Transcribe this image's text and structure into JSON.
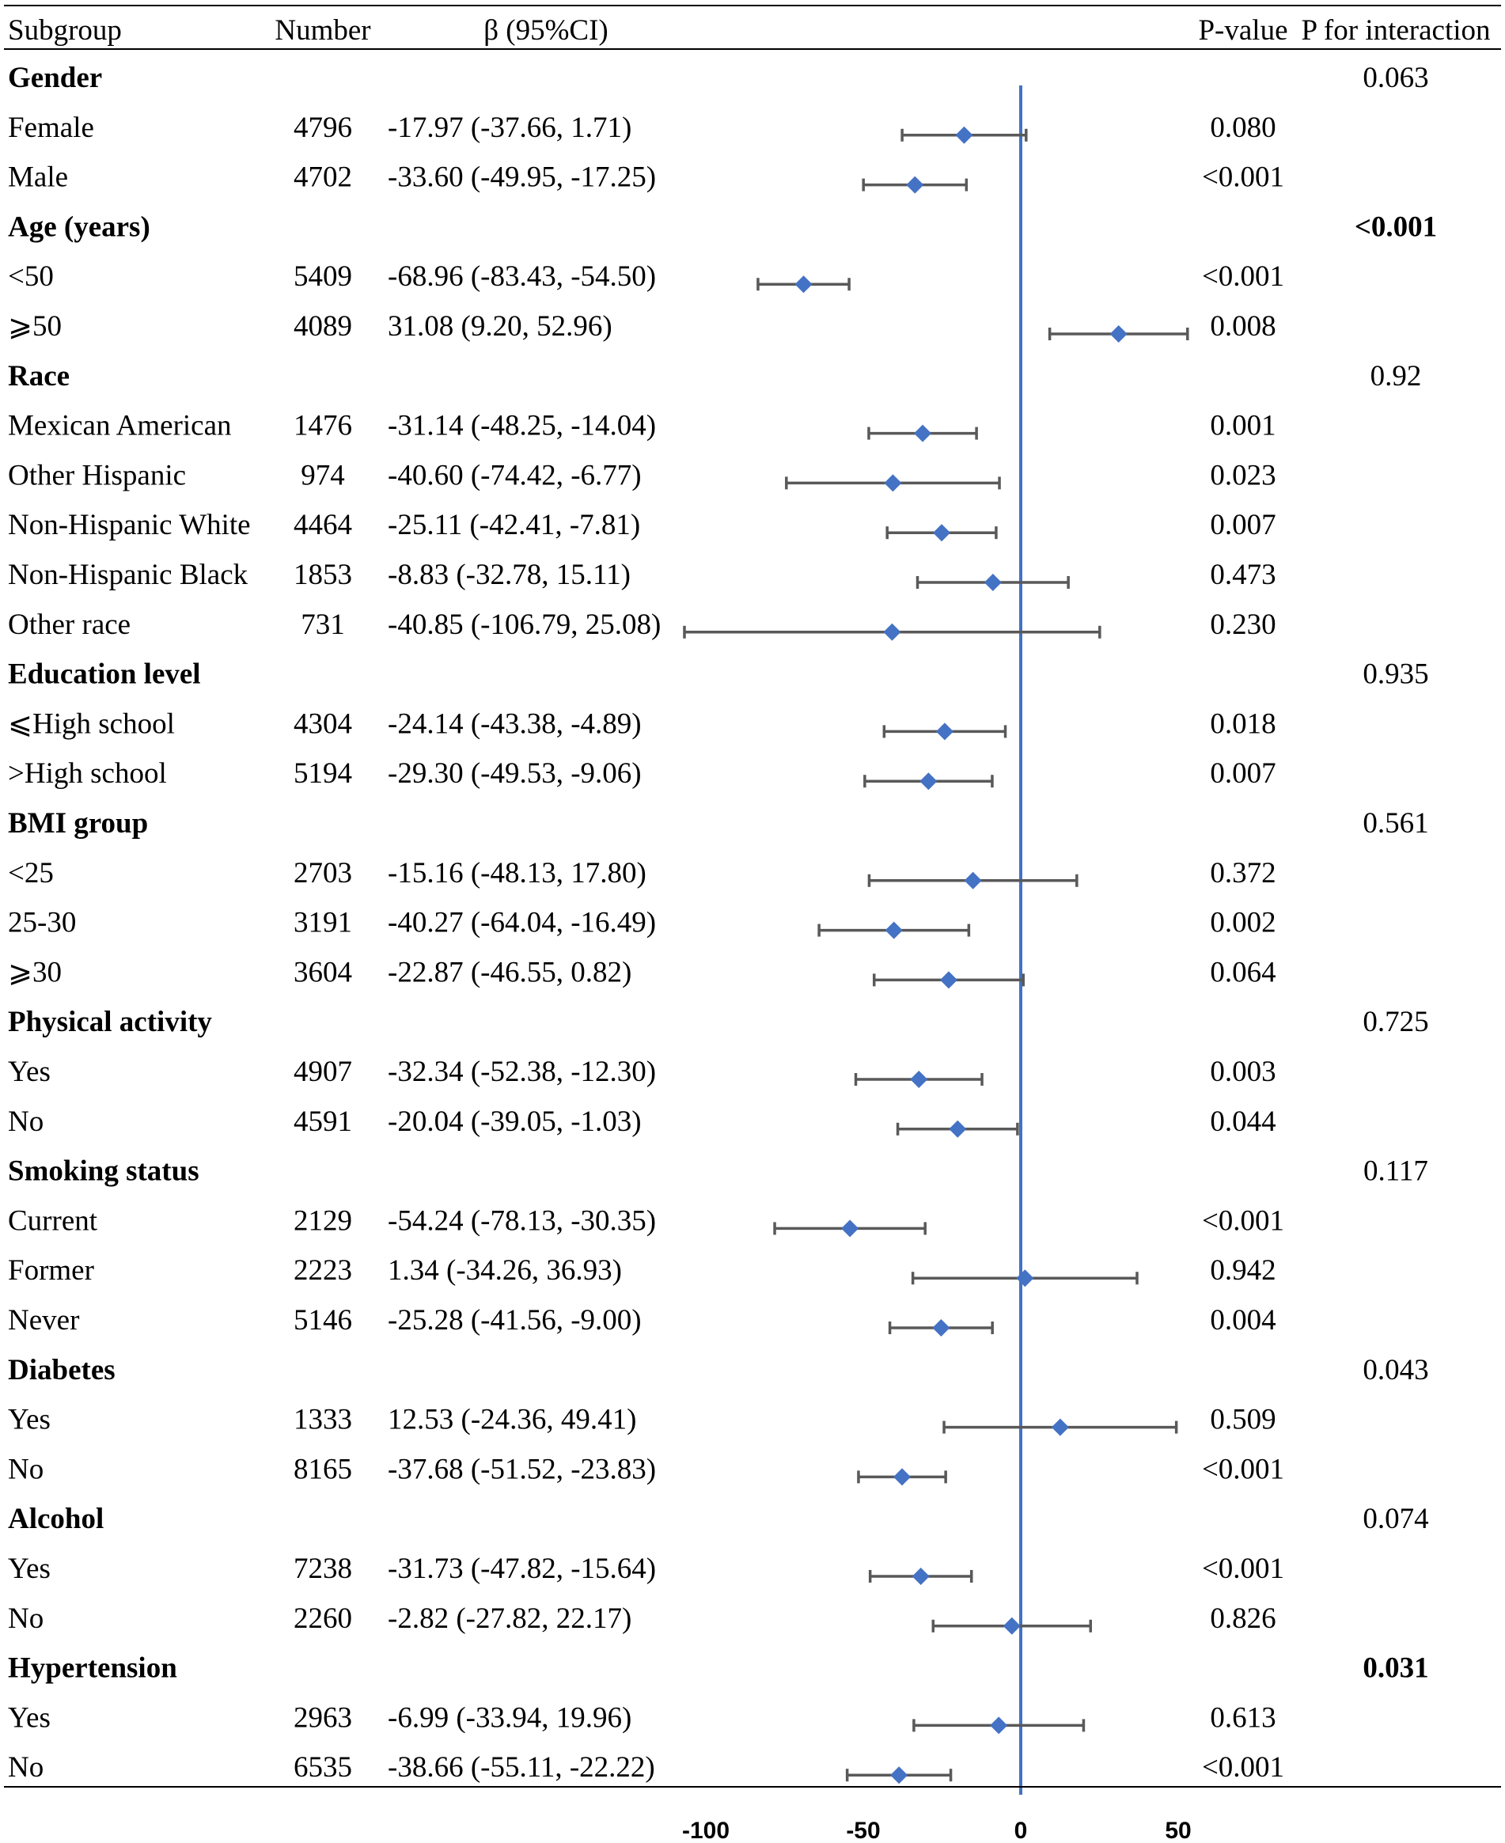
{
  "chart_data": {
    "type": "forest",
    "columns": {
      "subgroup": "Subgroup",
      "number": "Number",
      "beta": "β (95%CI)",
      "p_value": "P-value",
      "p_interaction": "P for interaction"
    },
    "x_axis": {
      "range": [
        -100,
        50
      ],
      "ticks": [
        -100,
        -50,
        0,
        50
      ],
      "reference_line": 0
    },
    "rows": [
      {
        "type": "group",
        "label": "Gender",
        "p_interaction": "0.063",
        "p_bold": false
      },
      {
        "type": "item",
        "label": "Female",
        "n": "4796",
        "ci_text": "-17.97 (-37.66, 1.71)",
        "beta": -17.97,
        "lower": -37.66,
        "upper": 1.71,
        "p": "0.080"
      },
      {
        "type": "item",
        "label": "Male",
        "n": "4702",
        "ci_text": "-33.60 (-49.95, -17.25)",
        "beta": -33.6,
        "lower": -49.95,
        "upper": -17.25,
        "p": "<0.001"
      },
      {
        "type": "group",
        "label": "Age (years)",
        "p_interaction": "<0.001",
        "p_bold": true
      },
      {
        "type": "item",
        "label": " <50",
        "n": "5409",
        "ci_text": "-68.96 (-83.43, -54.50)",
        "beta": -68.96,
        "lower": -83.43,
        "upper": -54.5,
        "p": "<0.001"
      },
      {
        "type": "item",
        "label": " ⩾50",
        "n": "4089",
        "ci_text": "31.08 (9.20, 52.96)",
        "beta": 31.08,
        "lower": 9.2,
        "upper": 52.96,
        "p": "0.008"
      },
      {
        "type": "group",
        "label": "Race",
        "p_interaction": "0.92",
        "p_bold": false
      },
      {
        "type": "item",
        "label": "Mexican American",
        "n": "1476",
        "ci_text": "-31.14 (-48.25, -14.04)",
        "beta": -31.14,
        "lower": -48.25,
        "upper": -14.04,
        "p": "0.001"
      },
      {
        "type": "item",
        "label": "Other Hispanic",
        "n": "974",
        "ci_text": "-40.60 (-74.42, -6.77)",
        "beta": -40.6,
        "lower": -74.42,
        "upper": -6.77,
        "p": "0.023"
      },
      {
        "type": "item",
        "label": "Non-Hispanic White",
        "n": "4464",
        "ci_text": "-25.11 (-42.41, -7.81)",
        "beta": -25.11,
        "lower": -42.41,
        "upper": -7.81,
        "p": "0.007"
      },
      {
        "type": "item",
        "label": "Non-Hispanic Black",
        "n": "1853",
        "ci_text": "-8.83 (-32.78, 15.11)",
        "beta": -8.83,
        "lower": -32.78,
        "upper": 15.11,
        "p": "0.473"
      },
      {
        "type": "item",
        "label": "Other race",
        "n": "731",
        "ci_text": "-40.85 (-106.79, 25.08)",
        "beta": -40.85,
        "lower": -106.79,
        "upper": 25.08,
        "p": "0.230"
      },
      {
        "type": "group",
        "label": "Education level",
        "p_interaction": "0.935",
        "p_bold": false
      },
      {
        "type": "item",
        "label": "⩽High school",
        "n": "4304",
        "ci_text": "-24.14 (-43.38, -4.89)",
        "beta": -24.14,
        "lower": -43.38,
        "upper": -4.89,
        "p": "0.018"
      },
      {
        "type": "item",
        "label": ">High school",
        "n": "5194",
        "ci_text": "-29.30 (-49.53, -9.06)",
        "beta": -29.3,
        "lower": -49.53,
        "upper": -9.06,
        "p": "0.007"
      },
      {
        "type": "group",
        "label": "BMI group",
        "p_interaction": "0.561",
        "p_bold": false
      },
      {
        "type": "item",
        "label": "<25",
        "n": "2703",
        "ci_text": "-15.16 (-48.13, 17.80)",
        "beta": -15.16,
        "lower": -48.13,
        "upper": 17.8,
        "p": "0.372"
      },
      {
        "type": "item",
        "label": "25-30",
        "n": "3191",
        "ci_text": "-40.27 (-64.04, -16.49)",
        "beta": -40.27,
        "lower": -64.04,
        "upper": -16.49,
        "p": "0.002"
      },
      {
        "type": "item",
        "label": "⩾30",
        "n": "3604",
        "ci_text": "-22.87 (-46.55, 0.82)",
        "beta": -22.87,
        "lower": -46.55,
        "upper": 0.82,
        "p": "0.064"
      },
      {
        "type": "group",
        "label": "Physical activity",
        "p_interaction": "0.725",
        "p_bold": false
      },
      {
        "type": "item",
        "label": "Yes",
        "n": "4907",
        "ci_text": "-32.34 (-52.38, -12.30)",
        "beta": -32.34,
        "lower": -52.38,
        "upper": -12.3,
        "p": "0.003"
      },
      {
        "type": "item",
        "label": "No",
        "n": "4591",
        "ci_text": "-20.04 (-39.05, -1.03)",
        "beta": -20.04,
        "lower": -39.05,
        "upper": -1.03,
        "p": "0.044"
      },
      {
        "type": "group",
        "label": "Smoking status",
        "p_interaction": "0.117",
        "p_bold": false
      },
      {
        "type": "item",
        "label": "Current",
        "n": "2129",
        "ci_text": "-54.24 (-78.13, -30.35)",
        "beta": -54.24,
        "lower": -78.13,
        "upper": -30.35,
        "p": "<0.001"
      },
      {
        "type": "item",
        "label": "Former",
        "n": "2223",
        "ci_text": "1.34 (-34.26, 36.93)",
        "beta": 1.34,
        "lower": -34.26,
        "upper": 36.93,
        "p": "0.942"
      },
      {
        "type": "item",
        "label": "Never",
        "n": "5146",
        "ci_text": "-25.28 (-41.56, -9.00)",
        "beta": -25.28,
        "lower": -41.56,
        "upper": -9.0,
        "p": "0.004"
      },
      {
        "type": "group",
        "label": "Diabetes",
        "p_interaction": "0.043",
        "p_bold": false
      },
      {
        "type": "item",
        "label": "Yes",
        "n": "1333",
        "ci_text": "12.53 (-24.36, 49.41)",
        "beta": 12.53,
        "lower": -24.36,
        "upper": 49.41,
        "p": "0.509"
      },
      {
        "type": "item",
        "label": "No",
        "n": "8165",
        "ci_text": "-37.68 (-51.52, -23.83)",
        "beta": -37.68,
        "lower": -51.52,
        "upper": -23.83,
        "p": "<0.001"
      },
      {
        "type": "group",
        "label": "Alcohol",
        "p_interaction": "0.074",
        "p_bold": false
      },
      {
        "type": "item",
        "label": "Yes",
        "n": "7238",
        "ci_text": "-31.73 (-47.82, -15.64)",
        "beta": -31.73,
        "lower": -47.82,
        "upper": -15.64,
        "p": "<0.001"
      },
      {
        "type": "item",
        "label": "No",
        "n": "2260",
        "ci_text": "-2.82 (-27.82, 22.17)",
        "beta": -2.82,
        "lower": -27.82,
        "upper": 22.17,
        "p": "0.826"
      },
      {
        "type": "group",
        "label": "Hypertension",
        "p_interaction": "0.031",
        "p_bold": true
      },
      {
        "type": "item",
        "label": "Yes",
        "n": "2963",
        "ci_text": "-6.99 (-33.94, 19.96)",
        "beta": -6.99,
        "lower": -33.94,
        "upper": 19.96,
        "p": "0.613"
      },
      {
        "type": "item",
        "label": "No",
        "n": "6535",
        "ci_text": "-38.66 (-55.11, -22.22)",
        "beta": -38.66,
        "lower": -55.11,
        "upper": -22.22,
        "p": "<0.001"
      }
    ],
    "colors": {
      "marker": "#4472c4",
      "reference_line": "#4472c4",
      "ci_line": "#595959"
    }
  }
}
